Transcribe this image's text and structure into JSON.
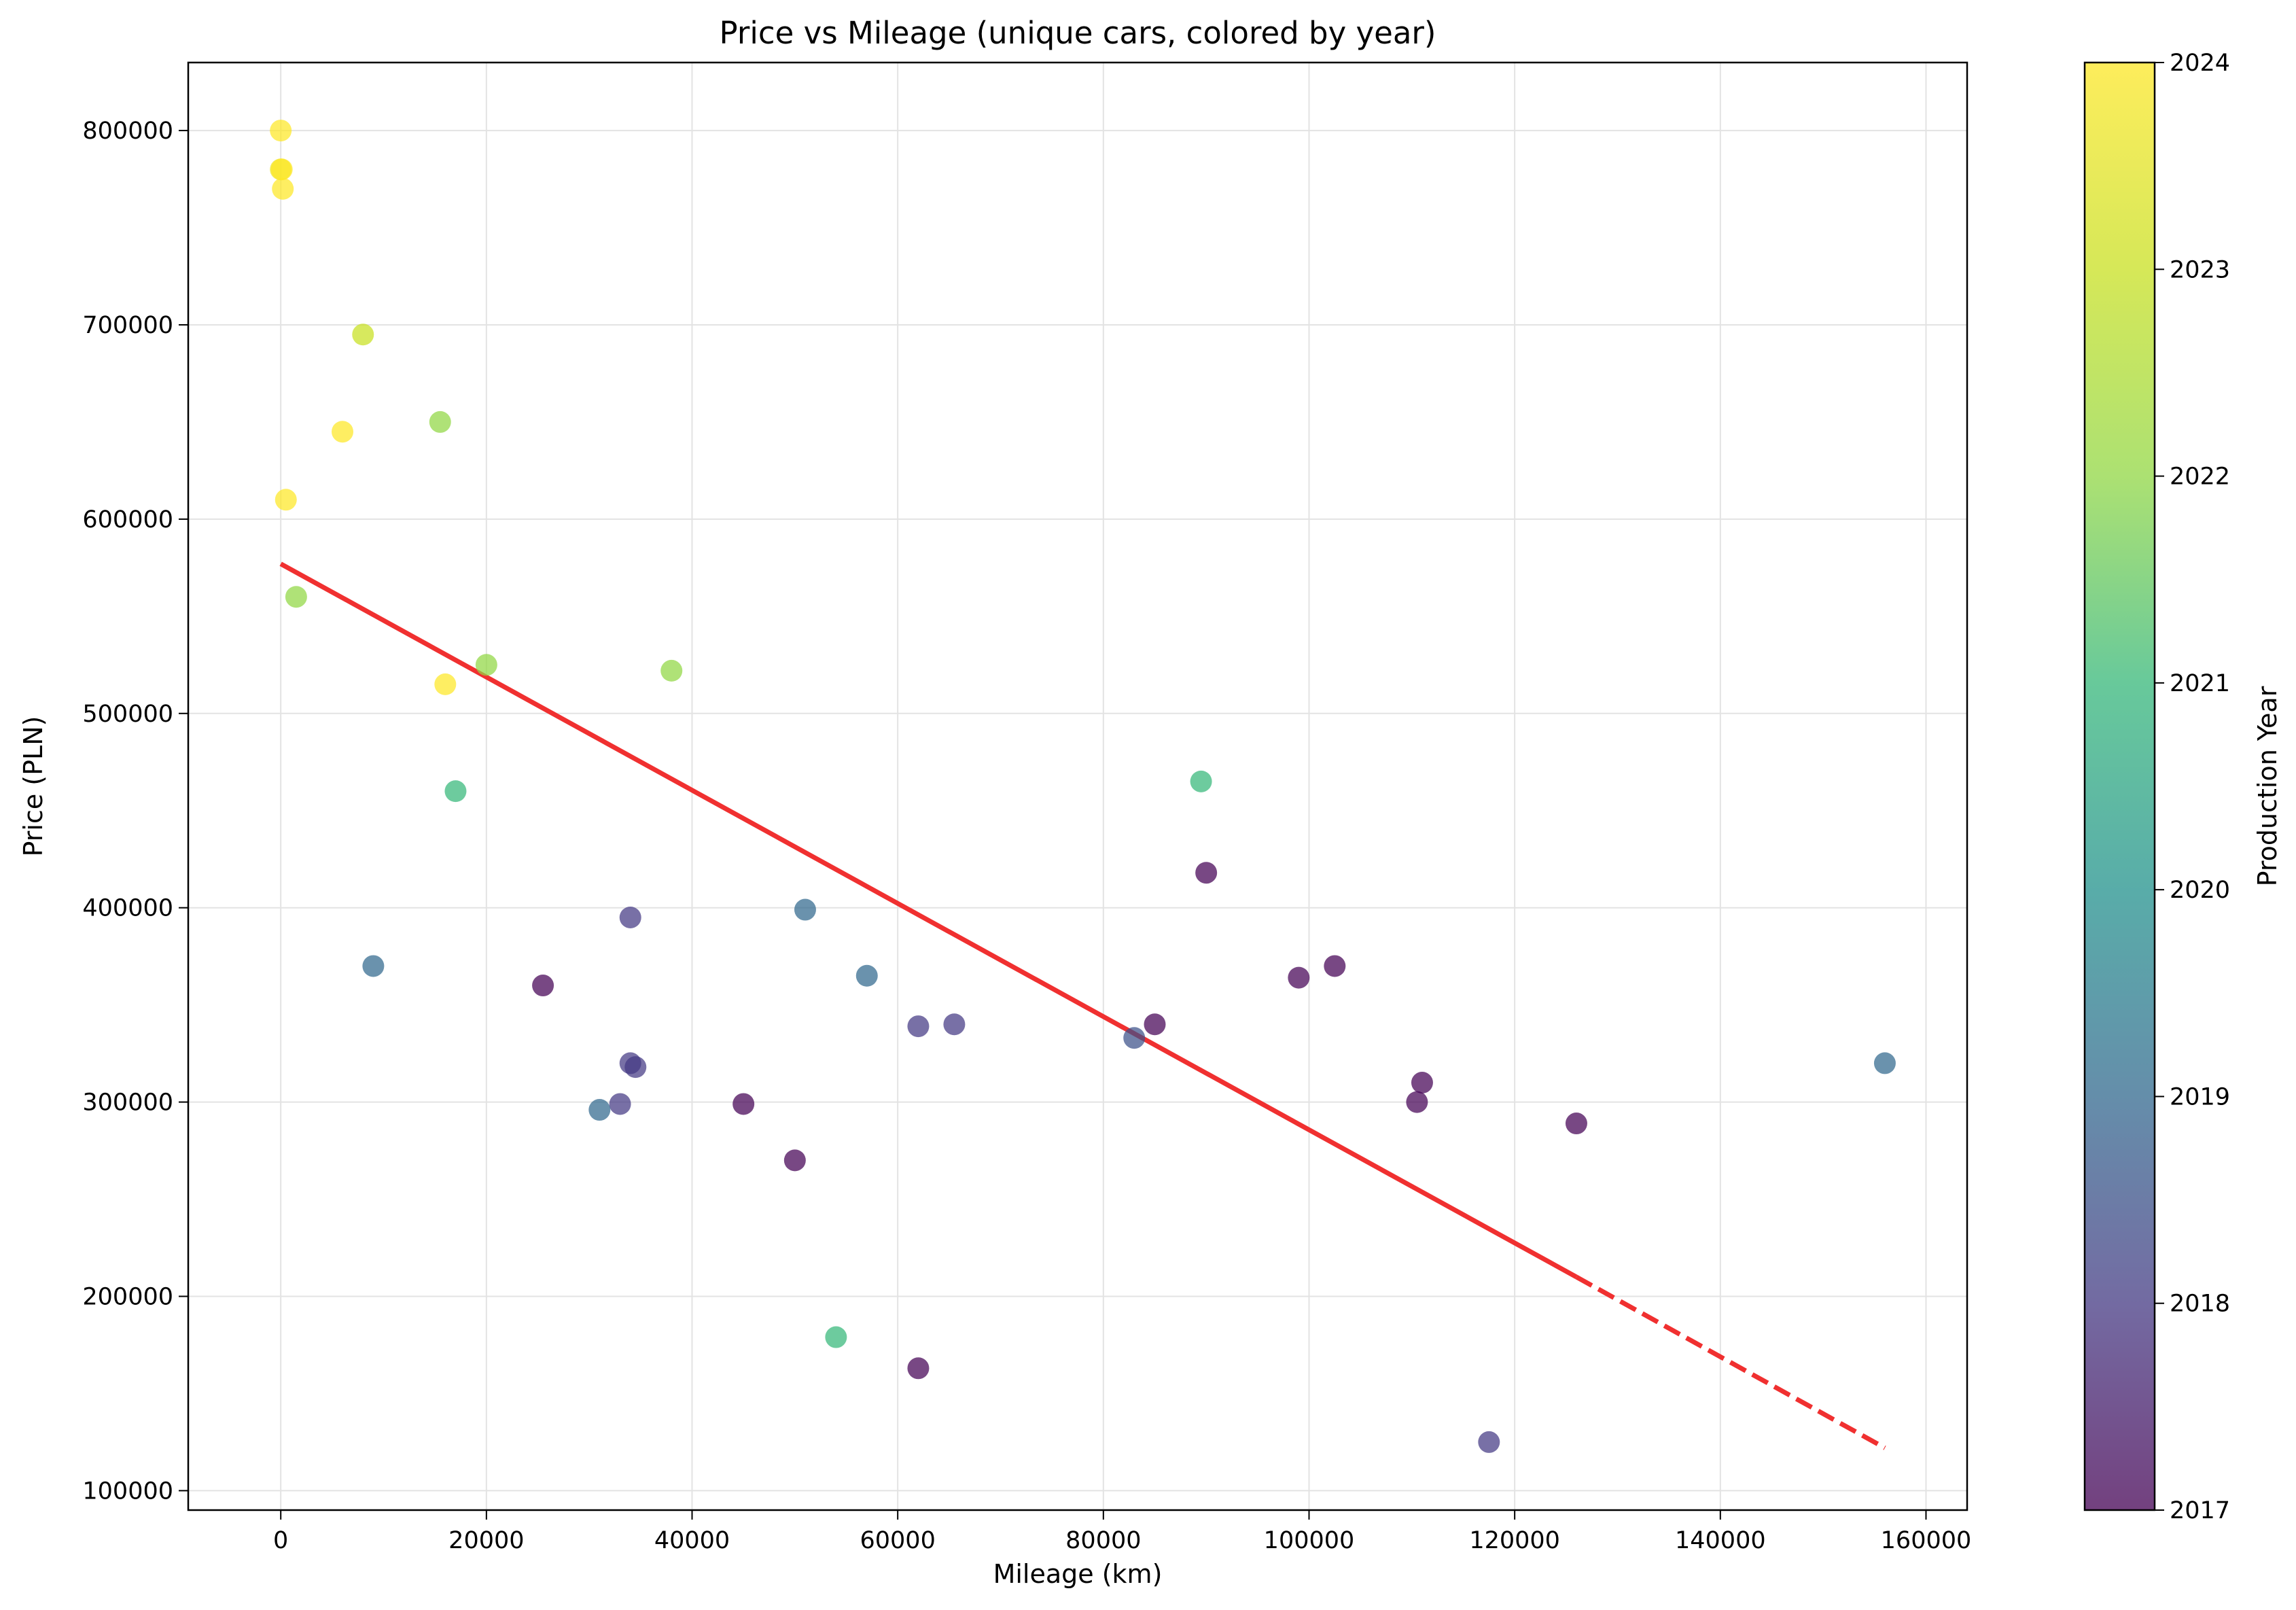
{
  "chart_data": {
    "type": "scatter",
    "title": "Price vs Mileage (unique cars, colored by year)",
    "xlabel": "Mileage (km)",
    "ylabel": "Price (PLN)",
    "xlim": [
      -9000,
      164000
    ],
    "ylim": [
      90000,
      835000
    ],
    "x_ticks": [
      0,
      20000,
      40000,
      60000,
      80000,
      100000,
      120000,
      140000,
      160000
    ],
    "y_ticks": [
      100000,
      200000,
      300000,
      400000,
      500000,
      600000,
      700000,
      800000
    ],
    "grid": true,
    "colorbar": {
      "label": "Production Year",
      "range": [
        2017,
        2024
      ],
      "ticks": [
        2017,
        2018,
        2019,
        2020,
        2021,
        2022,
        2023,
        2024
      ],
      "colormap": "viridis"
    },
    "points": [
      {
        "x": 0,
        "y": 800000,
        "year": 2024
      },
      {
        "x": 0,
        "y": 780000,
        "year": 2023.7
      },
      {
        "x": 100,
        "y": 780000,
        "year": 2024
      },
      {
        "x": 200,
        "y": 770000,
        "year": 2024
      },
      {
        "x": 8000,
        "y": 695000,
        "year": 2023
      },
      {
        "x": 15500,
        "y": 650000,
        "year": 2022
      },
      {
        "x": 6000,
        "y": 645000,
        "year": 2024
      },
      {
        "x": 500,
        "y": 610000,
        "year": 2024
      },
      {
        "x": 1500,
        "y": 560000,
        "year": 2022
      },
      {
        "x": 20000,
        "y": 525000,
        "year": 2022
      },
      {
        "x": 38000,
        "y": 522000,
        "year": 2022
      },
      {
        "x": 16000,
        "y": 515000,
        "year": 2024
      },
      {
        "x": 17000,
        "y": 460000,
        "year": 2021
      },
      {
        "x": 89500,
        "y": 465000,
        "year": 2021
      },
      {
        "x": 90000,
        "y": 418000,
        "year": 2017
      },
      {
        "x": 34000,
        "y": 395000,
        "year": 2018
      },
      {
        "x": 51000,
        "y": 399000,
        "year": 2019
      },
      {
        "x": 9000,
        "y": 370000,
        "year": 2019
      },
      {
        "x": 25500,
        "y": 360000,
        "year": 2017
      },
      {
        "x": 57000,
        "y": 365000,
        "year": 2019
      },
      {
        "x": 99000,
        "y": 364000,
        "year": 2017
      },
      {
        "x": 102500,
        "y": 370000,
        "year": 2017
      },
      {
        "x": 62000,
        "y": 339000,
        "year": 2018
      },
      {
        "x": 65500,
        "y": 340000,
        "year": 2018
      },
      {
        "x": 85000,
        "y": 340000,
        "year": 2017
      },
      {
        "x": 83000,
        "y": 333000,
        "year": 2018.5
      },
      {
        "x": 34000,
        "y": 320000,
        "year": 2018
      },
      {
        "x": 34500,
        "y": 318000,
        "year": 2018
      },
      {
        "x": 33000,
        "y": 299000,
        "year": 2018
      },
      {
        "x": 31000,
        "y": 296000,
        "year": 2019
      },
      {
        "x": 45000,
        "y": 299000,
        "year": 2017
      },
      {
        "x": 111000,
        "y": 310000,
        "year": 2017
      },
      {
        "x": 110500,
        "y": 300000,
        "year": 2017
      },
      {
        "x": 156000,
        "y": 320000,
        "year": 2019
      },
      {
        "x": 50000,
        "y": 270000,
        "year": 2017
      },
      {
        "x": 126000,
        "y": 289000,
        "year": 2017
      },
      {
        "x": 54000,
        "y": 179000,
        "year": 2021
      },
      {
        "x": 62000,
        "y": 163000,
        "year": 2017
      },
      {
        "x": 117500,
        "y": 125000,
        "year": 2018
      }
    ],
    "trend_line": {
      "color": "#f03030",
      "solid": {
        "x": [
          0,
          126000
        ],
        "y": [
          577000,
          210000
        ]
      },
      "dashed": {
        "x": [
          126000,
          156000
        ],
        "y": [
          210000,
          122000
        ]
      }
    }
  }
}
